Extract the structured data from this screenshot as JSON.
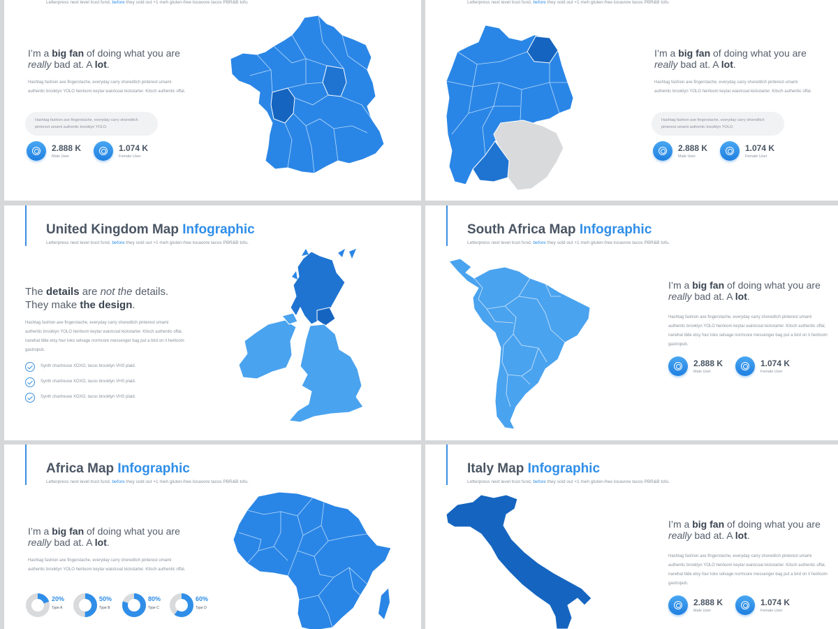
{
  "subtitle": {
    "pre": "Letterpress next level trust fund, ",
    "link": "before",
    "post": " they sold out +1 meh gluten-free locavore tacos PBR&B tofu."
  },
  "headline_fan": {
    "p1": "I’m a ",
    "b1": "big fan",
    "p2": " of doing what you are",
    "i1": "really",
    "p3": " bad at. A ",
    "b2": "lot",
    "p4": "."
  },
  "headline_details": {
    "p1": "The ",
    "b1": "details",
    "p2": " are ",
    "i1": "not the",
    "p3": " details.",
    "p4": "They make ",
    "b2": "the design",
    "p5": "."
  },
  "body_short": "Hashtag fashion axe fingerstache, everyday carry shoreditch pinterest umami authentic brooklyn YOLO heirloom keytar waistcoat kickstarter. Kitsch authentic offal.",
  "body_long": "Hashtag fashion axe fingerstache, everyday carry shoreditch pinterest umami authentic brooklyn YOLO heirloom keytar waistcoat kickstarter. Kitsch authentic offal, narwhal tilde etsy four loko selvage normcore messenger bag put a bird on it heirloom gastropub.",
  "quote": "Hashtag fashion axe fingerstache, everyday carry shoreditch pinterest umami authentic brooklyn YOLO.",
  "stats": {
    "male_value": "2.888 K",
    "male_label": "Male User",
    "female_value": "1.074 K",
    "female_label": "Female User"
  },
  "checks": [
    "Synth chartreuse XOXO, tacos brooklyn VHS plaid.",
    "Synth chartreuse XOXO, tacos brooklyn VHS plaid.",
    "Synth chartreuse XOXO, tacos brooklyn VHS plaid."
  ],
  "slides": {
    "uk": {
      "title_main": "United Kingdom Map ",
      "title_hl": "Infographic"
    },
    "sa": {
      "title_main": "South Africa Map ",
      "title_hl": "Infographic"
    },
    "africa": {
      "title_main": "Africa Map ",
      "title_hl": "Infographic"
    },
    "italy": {
      "title_main": "Italy Map ",
      "title_hl": "Infographic"
    }
  },
  "donuts": [
    {
      "value": "20%",
      "fraction": 0.2,
      "label": "Type A"
    },
    {
      "value": "50%",
      "fraction": 0.5,
      "label": "Type B"
    },
    {
      "value": "80%",
      "fraction": 0.8,
      "label": "Type C"
    },
    {
      "value": "60%",
      "fraction": 0.6,
      "label": "Type D"
    }
  ],
  "colors": {
    "accent": "#2f8ee8",
    "map_main": "#2a86e6",
    "map_dark": "#1565c0",
    "map_light": "#4aa3ef",
    "map_grey": "#d9dadc"
  }
}
